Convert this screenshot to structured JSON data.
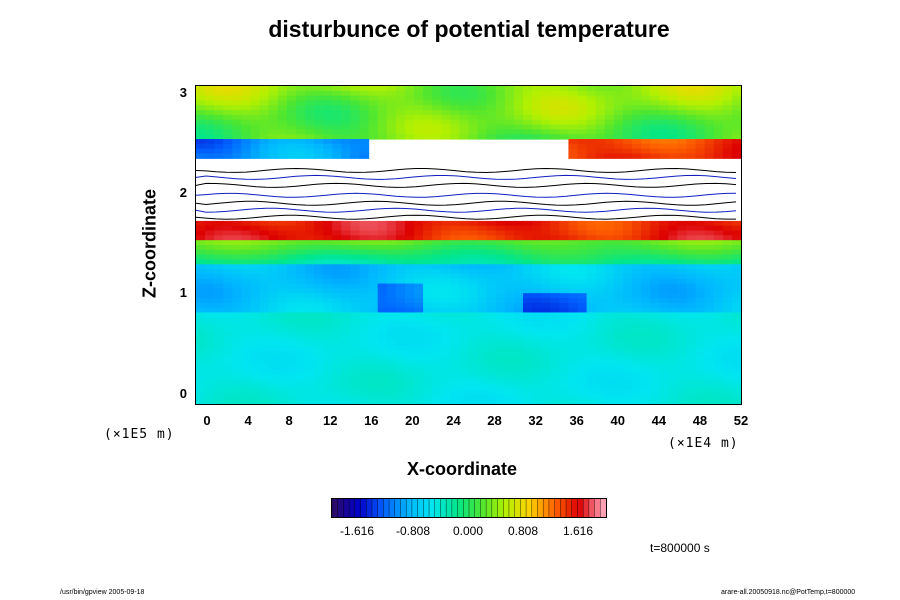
{
  "chart_data": {
    "type": "heatmap",
    "title": "disturbunce of potential temperature",
    "xlabel": "X-coordinate",
    "ylabel": "Z-coordinate",
    "x_unit": "(×1E4 m)",
    "y_unit": "(×1E5 m)",
    "xlim": [
      0,
      52
    ],
    "ylim": [
      0,
      3
    ],
    "x_ticks": [
      "0",
      "4",
      "8",
      "12",
      "16",
      "20",
      "24",
      "28",
      "32",
      "36",
      "40",
      "44",
      "48",
      "52"
    ],
    "y_ticks": [
      "0",
      "1",
      "2",
      "3"
    ],
    "colorbar": {
      "ticks": [
        "-1.616",
        "-0.808",
        "0.000",
        "0.808",
        "1.616"
      ],
      "tick_values": [
        -1.616,
        -0.808,
        0.0,
        0.808,
        1.616
      ],
      "range": [
        -2.2,
        2.2
      ],
      "colors": [
        "#2a0a6e",
        "#0000c8",
        "#0060ff",
        "#00b4ff",
        "#00e6f0",
        "#00e68c",
        "#4be632",
        "#b4f000",
        "#ffd200",
        "#ff6400",
        "#dc0000",
        "#ffa0b4"
      ]
    },
    "field_structure": [
      {
        "z_range": [
          0,
          0.8
        ],
        "value": -0.55,
        "description": "lower layer"
      },
      {
        "z_range": [
          0.8,
          1.3
        ],
        "value": -0.85,
        "description": "lower-mid layer"
      },
      {
        "z_range": [
          1.3,
          1.55
        ],
        "value": 0.0,
        "description": "transition"
      },
      {
        "z_range": [
          1.55,
          1.72
        ],
        "value": 1.8,
        "description": "warm band"
      },
      {
        "z_range": [
          1.72,
          2.35
        ],
        "value": null,
        "description": "blank (out of range)"
      },
      {
        "z_range": [
          2.35,
          2.55
        ],
        "value": -1.3,
        "description": "cold patch (left)"
      },
      {
        "z_range": [
          2.35,
          2.55
        ],
        "value": 1.7,
        "description": "warm patch (right)"
      },
      {
        "z_range": [
          2.55,
          3.1
        ],
        "value": 0.3,
        "description": "upper layer"
      }
    ]
  },
  "annotations": {
    "time": "t=800000 s",
    "footer_left": "/usr/bin/gpview 2005-09-18",
    "footer_right": "arare-all.20050918.nc@PotTemp,t=800000"
  },
  "colors": {
    "background": "#ffffff",
    "text": "#000000"
  }
}
